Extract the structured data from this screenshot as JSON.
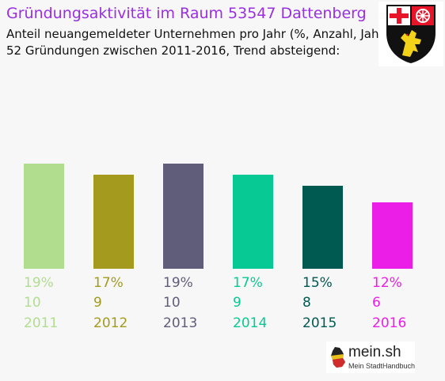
{
  "title": "Gründungsaktivität im Raum 53547 Dattenberg",
  "subtitle_1": "Anteil neuangemeldeter Unternehmen pro Jahr (%, Anzahl, Jahr)",
  "subtitle_2": "52 Gründungen zwischen 2011-2016, Trend absteigend:",
  "crest_icon": "rhineland-palatinate-coat-of-arms-icon",
  "logo": {
    "name": "mein.sh",
    "tagline": "Mein StadtHandbuch",
    "icon": "germany-map-icon"
  },
  "colors": {
    "title": "#9a2fe0",
    "background": "#f7f7f7"
  },
  "chart_data": {
    "type": "bar",
    "categories": [
      "2011",
      "2012",
      "2013",
      "2014",
      "2015",
      "2016"
    ],
    "series": [
      {
        "values": [
          19,
          17,
          19,
          17,
          15,
          12
        ]
      }
    ],
    "counts": [
      10,
      9,
      10,
      9,
      8,
      6
    ],
    "percent_labels": [
      "19%",
      "17%",
      "19%",
      "17%",
      "15%",
      "12%"
    ],
    "count_labels": [
      "10",
      "9",
      "10",
      "9",
      "8",
      "6"
    ],
    "colors": [
      "#b0de8e",
      "#a39a1e",
      "#605d7a",
      "#07c994",
      "#005a52",
      "#ea1ee6"
    ],
    "ylim": [
      0,
      19
    ],
    "grid": false,
    "legend": "none"
  }
}
